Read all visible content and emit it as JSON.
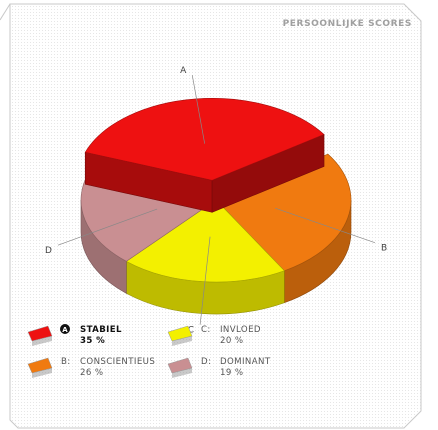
{
  "title": "PERSOONLIJKE SCORES",
  "colors": {
    "A": "#ee1111",
    "B": "#f07a10",
    "C": "#f3f000",
    "D": "#c98f92"
  },
  "chart_data": {
    "type": "pie",
    "title": "PERSOONLIJKE SCORES",
    "slices": [
      {
        "key": "A",
        "letter": "A",
        "label": "STABIEL",
        "value": 35,
        "value_text": "35 %",
        "exploded": true,
        "highlighted": true
      },
      {
        "key": "B",
        "letter": "B",
        "label": "CONSCIENTIEUS",
        "value": 26,
        "value_text": "26 %"
      },
      {
        "key": "C",
        "letter": "C",
        "label": "INVLOED",
        "value": 20,
        "value_text": "20 %"
      },
      {
        "key": "D",
        "letter": "D",
        "label": "DOMINANT",
        "value": 19,
        "value_text": "19 %"
      }
    ],
    "legend_position": "bottom"
  },
  "legend": {
    "items": [
      {
        "key": "A",
        "prefix": "A",
        "label": "STABIEL",
        "value": "35 %"
      },
      {
        "key": "C",
        "prefix": "C:",
        "label": "INVLOED",
        "value": "20 %"
      },
      {
        "key": "B",
        "prefix": "B:",
        "label": "CONSCIENTIEUS",
        "value": "26 %"
      },
      {
        "key": "D",
        "prefix": "D:",
        "label": "DOMINANT",
        "value": "19 %"
      }
    ]
  }
}
